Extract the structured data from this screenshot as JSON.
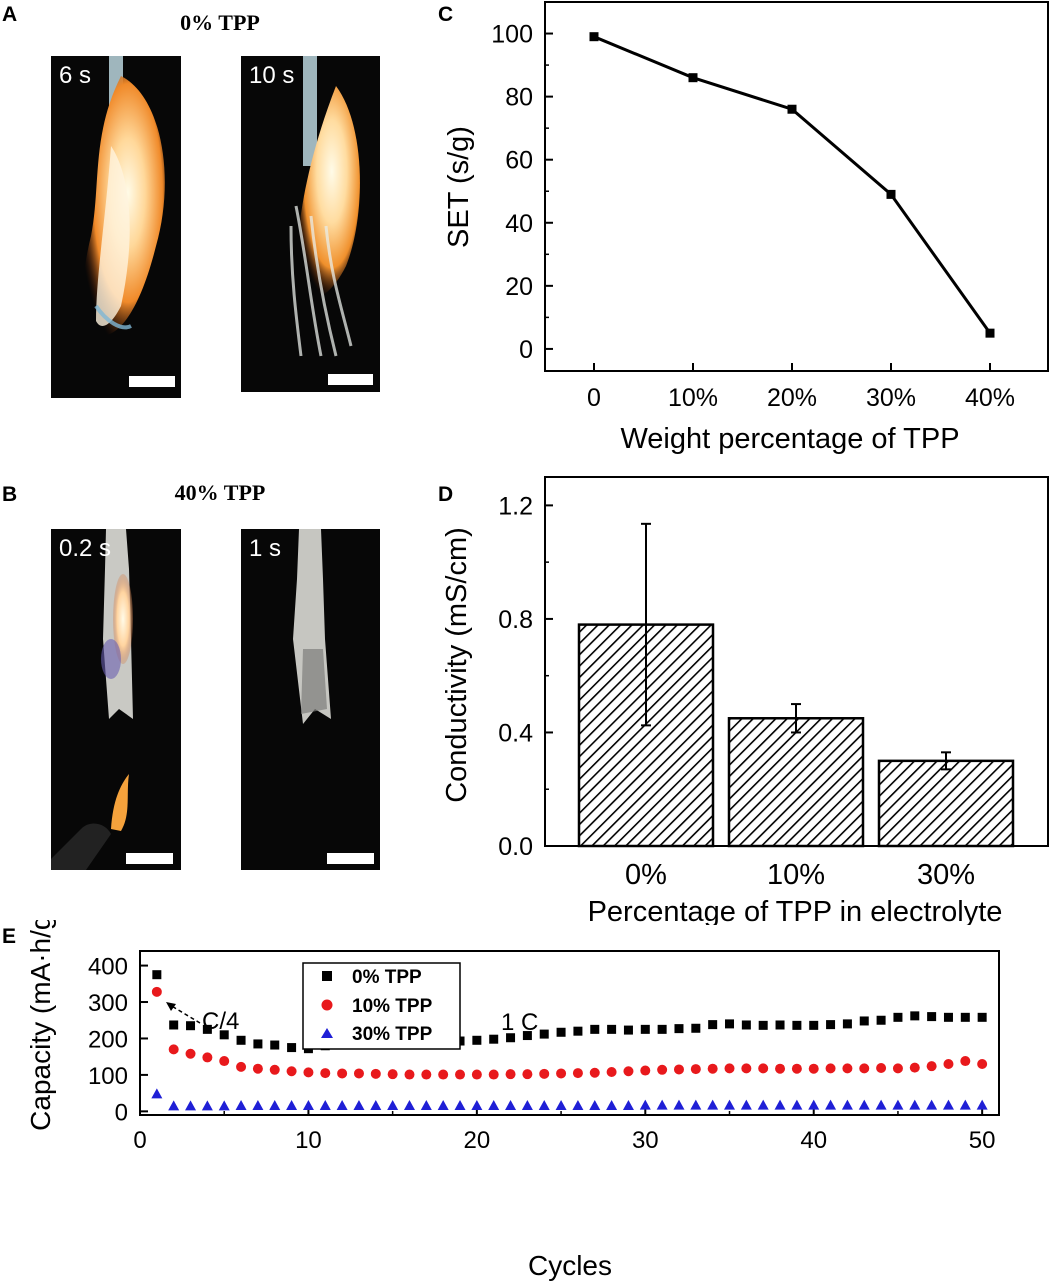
{
  "panel_labels": {
    "a": "A",
    "b": "B",
    "c": "C",
    "d": "D",
    "e": "E"
  },
  "photos": {
    "row_a": {
      "title": "0% TPP",
      "left_time": "6 s",
      "right_time": "10 s"
    },
    "row_b": {
      "title": "40% TPP",
      "left_time": "0.2 s",
      "right_time": "1 s"
    }
  },
  "chart_data": [
    {
      "panel": "C",
      "type": "line",
      "categories": [
        "0",
        "10%",
        "20%",
        "30%",
        "40%"
      ],
      "values": [
        99,
        86,
        76,
        49,
        5
      ],
      "xlabel": "Weight percentage of TPP",
      "ylabel": "SET (s/g)",
      "ylim": [
        -7,
        110
      ],
      "yticks": [
        0,
        20,
        40,
        60,
        80,
        100
      ],
      "color": "#000000"
    },
    {
      "panel": "D",
      "type": "bar",
      "categories": [
        "0%",
        "10%",
        "30%"
      ],
      "values": [
        0.78,
        0.45,
        0.3
      ],
      "errors": [
        0.355,
        0.05,
        0.03
      ],
      "xlabel": "Percentage of TPP in electrolyte",
      "ylabel": "Conductivity (mS/cm)",
      "ylim": [
        0,
        1.3
      ],
      "yticks": [
        "0.0",
        "0.4",
        "0.8",
        "1.2"
      ],
      "fill": "diagonal-hatch"
    },
    {
      "panel": "E",
      "type": "scatter",
      "xlabel": "Cycles",
      "ylabel": "Capacity (mA·h/g)",
      "xlim": [
        0,
        51
      ],
      "ylim": [
        -10,
        440
      ],
      "xticks": [
        0,
        10,
        20,
        30,
        40,
        50
      ],
      "yticks": [
        0,
        100,
        200,
        300,
        400
      ],
      "annotations": [
        "C/4",
        "1 C"
      ],
      "legend_position": "top-left",
      "series": [
        {
          "name": "0% TPP",
          "marker": "square",
          "color": "#000000",
          "x": [
            1,
            2,
            3,
            4,
            5,
            6,
            7,
            8,
            9,
            10,
            11,
            12,
            13,
            14,
            15,
            16,
            17,
            18,
            19,
            20,
            21,
            22,
            23,
            24,
            25,
            26,
            27,
            28,
            29,
            30,
            31,
            32,
            33,
            34,
            35,
            36,
            37,
            38,
            39,
            40,
            41,
            42,
            43,
            44,
            45,
            46,
            47,
            48,
            49,
            50
          ],
          "y": [
            375,
            237,
            235,
            225,
            210,
            195,
            185,
            182,
            175,
            172,
            180,
            190,
            197,
            190,
            190,
            190,
            190,
            193,
            193,
            195,
            198,
            202,
            208,
            212,
            217,
            220,
            225,
            225,
            223,
            225,
            225,
            227,
            228,
            238,
            240,
            237,
            236,
            237,
            236,
            236,
            238,
            240,
            248,
            250,
            258,
            262,
            260,
            258,
            258,
            258
          ]
        },
        {
          "name": "10% TPP",
          "marker": "circle",
          "color": "#e8191c",
          "x": [
            1,
            2,
            3,
            4,
            5,
            6,
            7,
            8,
            9,
            10,
            11,
            12,
            13,
            14,
            15,
            16,
            17,
            18,
            19,
            20,
            21,
            22,
            23,
            24,
            25,
            26,
            27,
            28,
            29,
            30,
            31,
            32,
            33,
            34,
            35,
            36,
            37,
            38,
            39,
            40,
            41,
            42,
            43,
            44,
            45,
            46,
            47,
            48,
            49,
            50
          ],
          "y": [
            328,
            170,
            158,
            148,
            138,
            122,
            117,
            114,
            110,
            107,
            105,
            104,
            104,
            103,
            102,
            101,
            101,
            101,
            101,
            101,
            101,
            102,
            102,
            103,
            104,
            105,
            106,
            108,
            110,
            112,
            114,
            115,
            116,
            117,
            118,
            118,
            118,
            117,
            117,
            117,
            118,
            118,
            118,
            119,
            118,
            120,
            124,
            130,
            138,
            130
          ]
        },
        {
          "name": "30% TPP",
          "marker": "triangle",
          "color": "#1f1fd6",
          "x": [
            1,
            2,
            3,
            4,
            5,
            6,
            7,
            8,
            9,
            10,
            11,
            12,
            13,
            14,
            15,
            16,
            17,
            18,
            19,
            20,
            21,
            22,
            23,
            24,
            25,
            26,
            27,
            28,
            29,
            30,
            31,
            32,
            33,
            34,
            35,
            36,
            37,
            38,
            39,
            40,
            41,
            42,
            43,
            44,
            45,
            46,
            47,
            48,
            49,
            50
          ],
          "y": [
            48,
            15,
            15,
            15,
            15,
            16,
            16,
            16,
            16,
            16,
            16,
            16,
            16,
            16,
            16,
            16,
            16,
            16,
            16,
            16,
            16,
            16,
            16,
            16,
            16,
            16,
            16,
            16,
            16,
            17,
            17,
            17,
            17,
            17,
            17,
            17,
            17,
            17,
            17,
            17,
            17,
            17,
            17,
            17,
            17,
            17,
            17,
            17,
            17,
            17
          ]
        }
      ]
    }
  ]
}
